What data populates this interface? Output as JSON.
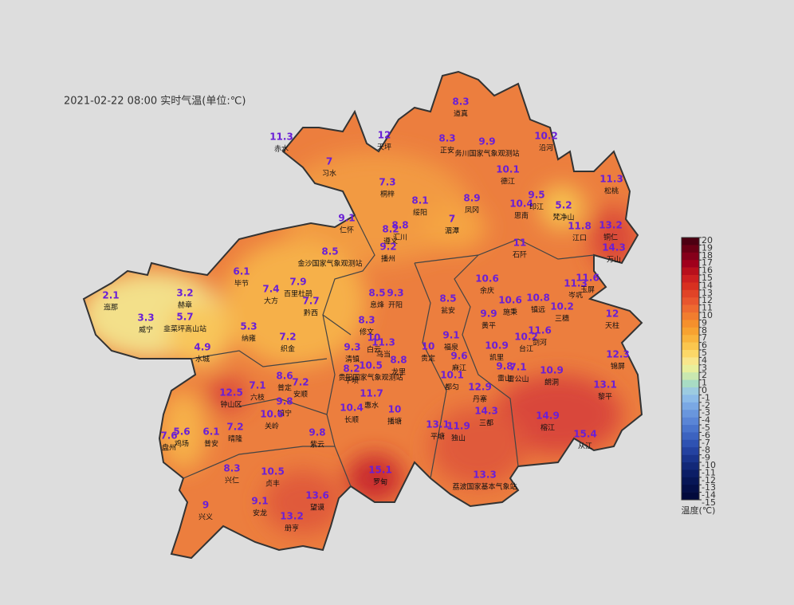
{
  "title": "2021-02-22 08:00 实时气温(单位:℃)",
  "stations": [
    {
      "value": 11.3,
      "name": "赤水"
    },
    {
      "value": 12,
      "name": "天坪"
    },
    {
      "value": 7,
      "name": "习水"
    },
    {
      "value": 8.3,
      "name": "道真"
    },
    {
      "value": 8.3,
      "name": "正安"
    },
    {
      "value": 9.9,
      "name": "务川国家气象观测站"
    },
    {
      "value": 10.2,
      "name": "沿河"
    },
    {
      "value": 7.3,
      "name": "桐梓"
    },
    {
      "value": 10.1,
      "name": "德江"
    },
    {
      "value": 11.3,
      "name": "松桃"
    },
    {
      "value": 8.1,
      "name": "绥阳"
    },
    {
      "value": 8.9,
      "name": "凤冈"
    },
    {
      "value": 10.4,
      "name": "思南"
    },
    {
      "value": 9.5,
      "name": "印江"
    },
    {
      "value": 5.2,
      "name": "梵净山"
    },
    {
      "value": 11.8,
      "name": "江口"
    },
    {
      "value": 13.2,
      "name": "铜仁"
    },
    {
      "value": 14.3,
      "name": "万山"
    },
    {
      "value": 9.1,
      "name": "仁怀"
    },
    {
      "value": 8.2,
      "name": "遵义"
    },
    {
      "value": 8.8,
      "name": "汇川"
    },
    {
      "value": 7,
      "name": "湄潭"
    },
    {
      "value": 9.2,
      "name": "播州"
    },
    {
      "value": 11,
      "name": "石阡"
    },
    {
      "value": 8.5,
      "name": "金沙国家气象观测站"
    },
    {
      "value": 6.1,
      "name": "毕节"
    },
    {
      "value": 7.4,
      "name": "大方"
    },
    {
      "value": 7.9,
      "name": "百里杜鹃"
    },
    {
      "value": 7.7,
      "name": "黔西"
    },
    {
      "value": 8.5,
      "name": "息烽"
    },
    {
      "value": 9.3,
      "name": "开阳"
    },
    {
      "value": 8.5,
      "name": "瓮安"
    },
    {
      "value": 10.6,
      "name": "余庆"
    },
    {
      "value": 10.6,
      "name": "施秉"
    },
    {
      "value": 10.8,
      "name": "镇远"
    },
    {
      "value": 11.3,
      "name": "岑巩"
    },
    {
      "value": 11.6,
      "name": "玉屏"
    },
    {
      "value": 10.2,
      "name": "三穗"
    },
    {
      "value": 12,
      "name": "天柱"
    },
    {
      "value": 2.1,
      "name": "迤那"
    },
    {
      "value": 3.3,
      "name": "威宁"
    },
    {
      "value": 3.2,
      "name": "赫章"
    },
    {
      "value": 5.7,
      "name": "韭菜坪高山站"
    },
    {
      "value": 5.3,
      "name": "纳雍"
    },
    {
      "value": 7.2,
      "name": "织金"
    },
    {
      "value": 4.9,
      "name": "水城"
    },
    {
      "value": 8.3,
      "name": "修文"
    },
    {
      "value": 9.3,
      "name": "清镇"
    },
    {
      "value": 10,
      "name": "白云"
    },
    {
      "value": 11.3,
      "name": "乌当"
    },
    {
      "value": 10.5,
      "name": "贵阳国家气象观测站"
    },
    {
      "value": 8.8,
      "name": "龙里"
    },
    {
      "value": 8.2,
      "name": "平坝"
    },
    {
      "value": 10,
      "name": "贵定"
    },
    {
      "value": 9.1,
      "name": "福泉"
    },
    {
      "value": 9.6,
      "name": "麻江"
    },
    {
      "value": 10.1,
      "name": "都匀"
    },
    {
      "value": 9.9,
      "name": "黄平"
    },
    {
      "value": 10.9,
      "name": "凯里"
    },
    {
      "value": 10.2,
      "name": "台江"
    },
    {
      "value": 11.6,
      "name": "剑河"
    },
    {
      "value": 9.8,
      "name": "雷山"
    },
    {
      "value": 7.1,
      "name": "雷公山"
    },
    {
      "value": 10.9,
      "name": "朗洞"
    },
    {
      "value": 12.3,
      "name": "锦屏"
    },
    {
      "value": 13.1,
      "name": "黎平"
    },
    {
      "value": 12.5,
      "name": "钟山区"
    },
    {
      "value": 7.1,
      "name": "六枝"
    },
    {
      "value": 8.6,
      "name": "普定"
    },
    {
      "value": 7.2,
      "name": "安顺"
    },
    {
      "value": 9.8,
      "name": "镇宁"
    },
    {
      "value": 10.6,
      "name": "关岭"
    },
    {
      "value": 11.7,
      "name": "惠水"
    },
    {
      "value": 10.4,
      "name": "长顺"
    },
    {
      "value": 10,
      "name": "播塘"
    },
    {
      "value": 12.9,
      "name": "丹寨"
    },
    {
      "value": 14.3,
      "name": "三都"
    },
    {
      "value": 13.1,
      "name": "平塘"
    },
    {
      "value": 11.9,
      "name": "独山"
    },
    {
      "value": 14.9,
      "name": "榕江"
    },
    {
      "value": 15.4,
      "name": "从江"
    },
    {
      "value": 7.6,
      "name": "盘州"
    },
    {
      "value": 5.6,
      "name": "鸡场"
    },
    {
      "value": 6.1,
      "name": "普安"
    },
    {
      "value": 7.2,
      "name": "晴隆"
    },
    {
      "value": 8.3,
      "name": "兴仁"
    },
    {
      "value": 10.5,
      "name": "贞丰"
    },
    {
      "value": 9.8,
      "name": "紫云"
    },
    {
      "value": 9,
      "name": "兴义"
    },
    {
      "value": 9.1,
      "name": "安龙"
    },
    {
      "value": 13.2,
      "name": "册亨"
    },
    {
      "value": 13.6,
      "name": "望谟"
    },
    {
      "value": 15.1,
      "name": "罗甸"
    },
    {
      "value": 13.3,
      "name": "荔波国家基本气象站"
    }
  ],
  "legend": {
    "title": "温度(℃)",
    "ticks": [
      20,
      19,
      18,
      17,
      16,
      15,
      14,
      13,
      12,
      11,
      10,
      9,
      8,
      7,
      6,
      5,
      4,
      3,
      2,
      1,
      0,
      -1,
      -2,
      -3,
      -4,
      -5,
      -6,
      -7,
      -8,
      -9,
      -10,
      -11,
      -12,
      -13,
      -14,
      -15
    ],
    "colors": [
      "#4d0012",
      "#6a0015",
      "#85001a",
      "#a0001c",
      "#b8101c",
      "#cc2020",
      "#d83020",
      "#e04427",
      "#e8562e",
      "#ee6a30",
      "#f27d2e",
      "#f5902c",
      "#f7a230",
      "#f9b43c",
      "#fbc64e",
      "#fcd868",
      "#f8e68c",
      "#e8ef9c",
      "#c9e8b0",
      "#a8dcc4",
      "#9ccbe0",
      "#8cbbe8",
      "#7aa8e4",
      "#6996dd",
      "#5a85d6",
      "#4a74cc",
      "#3c63c0",
      "#2f52b2",
      "#2442a0",
      "#1a348c",
      "#122878",
      "#0c1e66",
      "#071656",
      "#040f48",
      "#020a3c"
    ]
  }
}
